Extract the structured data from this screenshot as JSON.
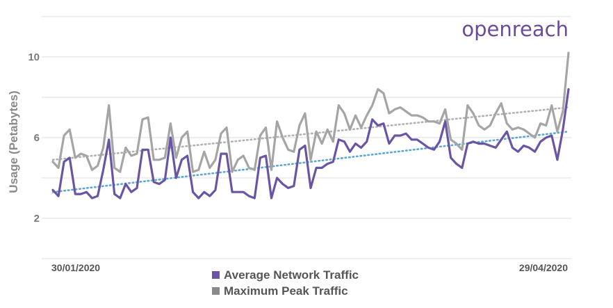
{
  "brand": {
    "logo_text": "openreach"
  },
  "chart_data": {
    "type": "line",
    "title": "",
    "xlabel": "",
    "ylabel": "Usage (Petabytes)",
    "x_tick_labels": [
      "30/01/2020",
      "29/04/2020"
    ],
    "x_range": [
      "30/01/2020",
      "29/04/2020"
    ],
    "y_ticks": [
      2,
      6,
      10
    ],
    "ylim": [
      0,
      12.2
    ],
    "grid": true,
    "legend_position": "bottom-center",
    "series": [
      {
        "name": "Average Network Traffic",
        "color": "#6a55a4",
        "values": [
          3.4,
          3.1,
          4.8,
          5.0,
          3.2,
          3.2,
          3.3,
          3.0,
          3.1,
          4.4,
          5.9,
          3.2,
          3.0,
          3.7,
          3.3,
          3.5,
          5.4,
          5.4,
          3.8,
          3.7,
          3.9,
          6.0,
          4.0,
          4.9,
          5.1,
          3.3,
          3.0,
          3.3,
          3.1,
          3.4,
          5.2,
          5.2,
          3.3,
          3.3,
          3.3,
          3.1,
          3.0,
          5.0,
          5.1,
          3.0,
          4.0,
          3.7,
          3.5,
          3.6,
          5.4,
          5.6,
          3.5,
          4.5,
          4.5,
          4.7,
          4.8,
          5.9,
          5.8,
          5.3,
          5.7,
          5.5,
          5.8,
          6.9,
          6.6,
          6.7,
          5.7,
          6.1,
          6.1,
          6.2,
          5.9,
          5.9,
          5.7,
          5.5,
          5.4,
          5.8,
          6.8,
          5.0,
          4.7,
          4.5,
          5.7,
          5.8,
          5.7,
          5.7,
          5.6,
          5.5,
          5.9,
          6.3,
          5.5,
          5.3,
          5.6,
          5.5,
          5.3,
          5.8,
          6.0,
          6.1,
          4.9,
          6.4,
          8.4
        ]
      },
      {
        "name": "Maximum Peak Traffic",
        "color": "#a5a5a5",
        "values": [
          4.8,
          4.5,
          6.1,
          6.4,
          5.0,
          5.2,
          5.1,
          4.4,
          4.6,
          5.5,
          7.6,
          4.5,
          4.3,
          5.5,
          5.1,
          5.2,
          6.9,
          7.0,
          4.9,
          4.9,
          5.0,
          6.7,
          5.0,
          6.0,
          6.3,
          4.3,
          4.4,
          5.3,
          4.5,
          4.9,
          6.2,
          6.5,
          4.3,
          4.9,
          5.1,
          4.5,
          4.4,
          6.1,
          6.5,
          4.4,
          6.8,
          6.0,
          5.4,
          5.3,
          6.6,
          7.2,
          4.9,
          6.3,
          5.7,
          6.4,
          5.8,
          7.6,
          7.2,
          6.4,
          7.1,
          6.5,
          7.1,
          7.6,
          8.4,
          8.2,
          7.2,
          7.4,
          7.5,
          7.3,
          7.1,
          7.1,
          7.0,
          6.8,
          6.8,
          6.7,
          7.4,
          5.9,
          5.7,
          5.4,
          7.6,
          7.2,
          6.6,
          6.4,
          6.6,
          7.2,
          7.7,
          6.7,
          6.4,
          6.5,
          6.4,
          6.2,
          6.0,
          6.7,
          6.6,
          7.6,
          6.3,
          7.3,
          10.2
        ]
      }
    ],
    "trendlines": [
      {
        "series": "Average Network Traffic",
        "color": "#5aa6d6",
        "start": 3.3,
        "end": 6.3
      },
      {
        "series": "Maximum Peak Traffic",
        "color": "#b0b0b0",
        "start": 4.9,
        "end": 7.5
      }
    ]
  }
}
